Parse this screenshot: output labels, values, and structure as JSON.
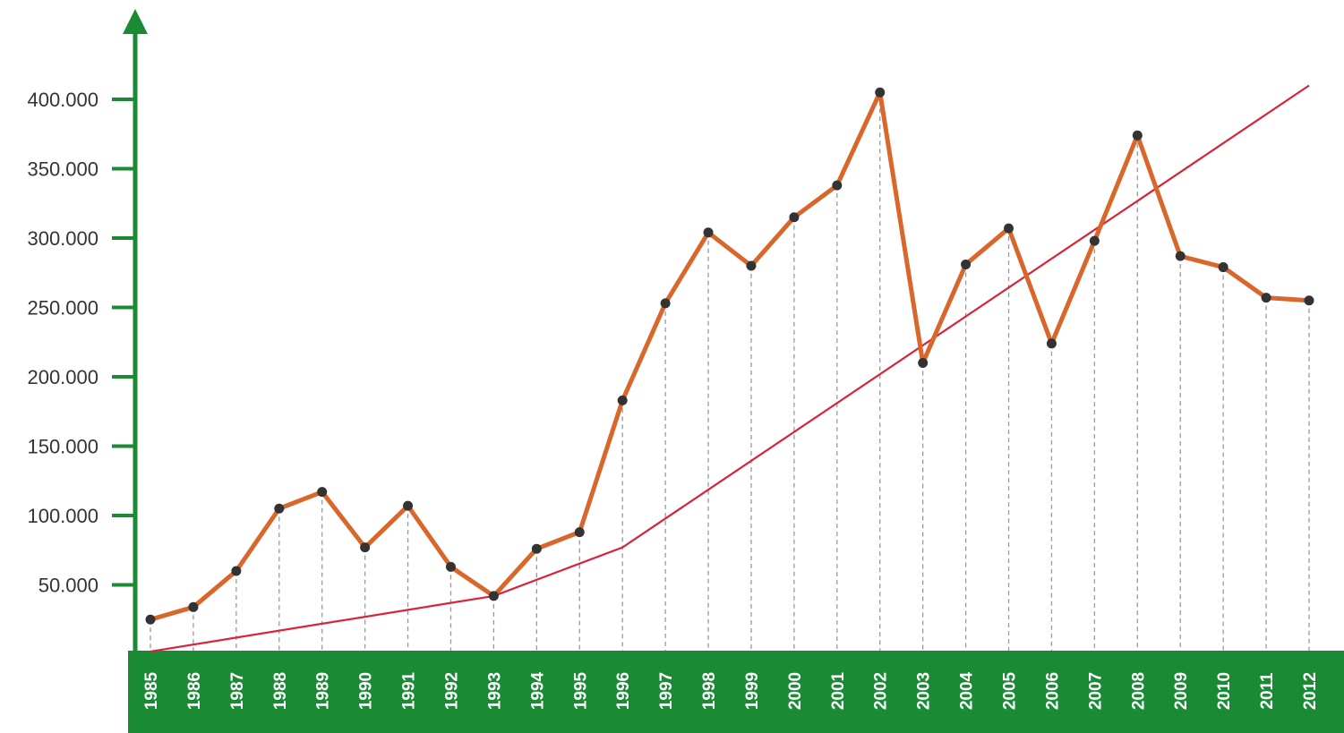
{
  "chart_data": {
    "type": "line",
    "title": "",
    "xlabel": "",
    "ylabel": "",
    "categories": [
      "1985",
      "1986",
      "1987",
      "1988",
      "1989",
      "1990",
      "1991",
      "1992",
      "1993",
      "1994",
      "1995",
      "1996",
      "1997",
      "1998",
      "1999",
      "2000",
      "2001",
      "2002",
      "2003",
      "2004",
      "2005",
      "2006",
      "2007",
      "2008",
      "2009",
      "2010",
      "2011",
      "2012"
    ],
    "ylim": [
      0,
      400000
    ],
    "y_ticks": [
      "50.000",
      "100.000",
      "150.000",
      "200.000",
      "250.000",
      "300.000",
      "350.000",
      "400.000"
    ],
    "y_tick_values": [
      50000,
      100000,
      150000,
      200000,
      250000,
      300000,
      350000,
      400000
    ],
    "series": [
      {
        "style": "thick-line-with-points",
        "values": [
          25000,
          34000,
          60000,
          105000,
          117000,
          77000,
          107000,
          63000,
          42000,
          76000,
          88000,
          183000,
          253000,
          304000,
          280000,
          315000,
          338000,
          405000,
          210000,
          281000,
          307000,
          224000,
          298000,
          374000,
          287000,
          279000,
          257000,
          255000
        ]
      },
      {
        "style": "trend-line",
        "values": [
          2000,
          null,
          null,
          null,
          null,
          null,
          null,
          null,
          42000,
          null,
          null,
          77000,
          null,
          null,
          null,
          null,
          null,
          null,
          null,
          null,
          null,
          null,
          null,
          null,
          null,
          null,
          null,
          410000
        ]
      }
    ],
    "grid": false,
    "drop_lines": true,
    "legend": "none",
    "colors": {
      "axis": "#1a8a35",
      "xaxis_band": "#1a8a35",
      "main_line": "#d9662b",
      "points": "#333333",
      "trend_line": "#d8233a",
      "drop_lines": "#999999"
    }
  }
}
